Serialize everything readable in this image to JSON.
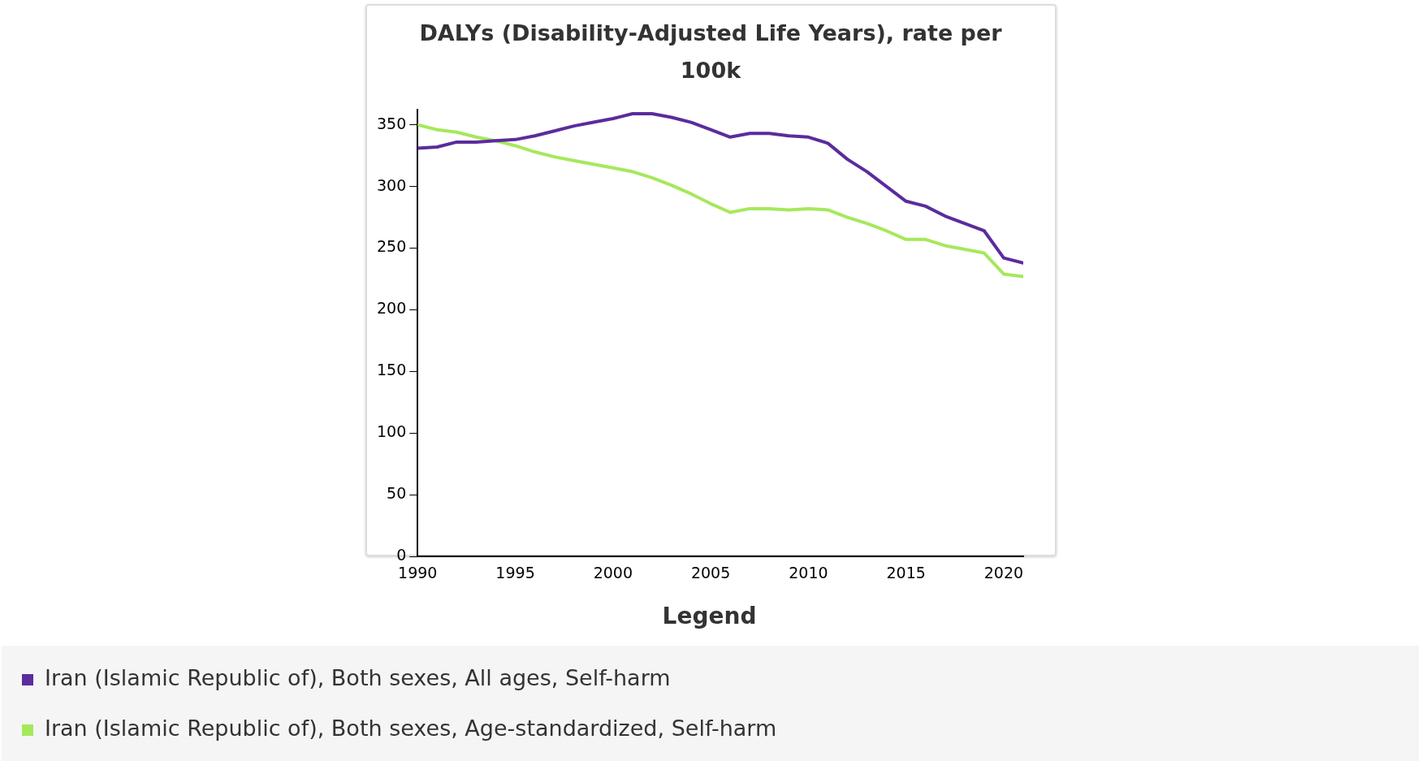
{
  "chart_data": {
    "type": "line",
    "title": "DALYs (Disability-Adjusted Life Years), rate per 100k",
    "x": [
      1990,
      1991,
      1992,
      1993,
      1994,
      1995,
      1996,
      1997,
      1998,
      1999,
      2000,
      2001,
      2002,
      2003,
      2004,
      2005,
      2006,
      2007,
      2008,
      2009,
      2010,
      2011,
      2012,
      2013,
      2014,
      2015,
      2016,
      2017,
      2018,
      2019,
      2020,
      2021
    ],
    "series": [
      {
        "name": "Iran (Islamic Republic of), Both sexes, All ages, Self-harm",
        "color": "#5b2c9c",
        "values": [
          331,
          332,
          336,
          336,
          337,
          338,
          341,
          345,
          349,
          352,
          355,
          359,
          359,
          356,
          352,
          346,
          340,
          343,
          343,
          341,
          340,
          335,
          322,
          312,
          300,
          288,
          284,
          276,
          270,
          264,
          242,
          238
        ]
      },
      {
        "name": "Iran (Islamic Republic of), Both sexes, Age-standardized, Self-harm",
        "color": "#a6e85c",
        "values": [
          350,
          346,
          344,
          340,
          337,
          333,
          328,
          324,
          321,
          318,
          315,
          312,
          307,
          301,
          294,
          286,
          279,
          282,
          282,
          281,
          282,
          281,
          275,
          270,
          264,
          257,
          257,
          252,
          249,
          246,
          229,
          227
        ]
      }
    ],
    "xlim": [
      1990,
      2021
    ],
    "xticks": [
      1990,
      1995,
      2000,
      2005,
      2010,
      2015,
      2020
    ],
    "ylim": [
      0,
      362
    ],
    "yticks": [
      0,
      50,
      100,
      150,
      200,
      250,
      300,
      350
    ],
    "grid": false,
    "legend": "bottom",
    "legend_title": "Legend",
    "marker": "none",
    "line_style": "solid"
  }
}
